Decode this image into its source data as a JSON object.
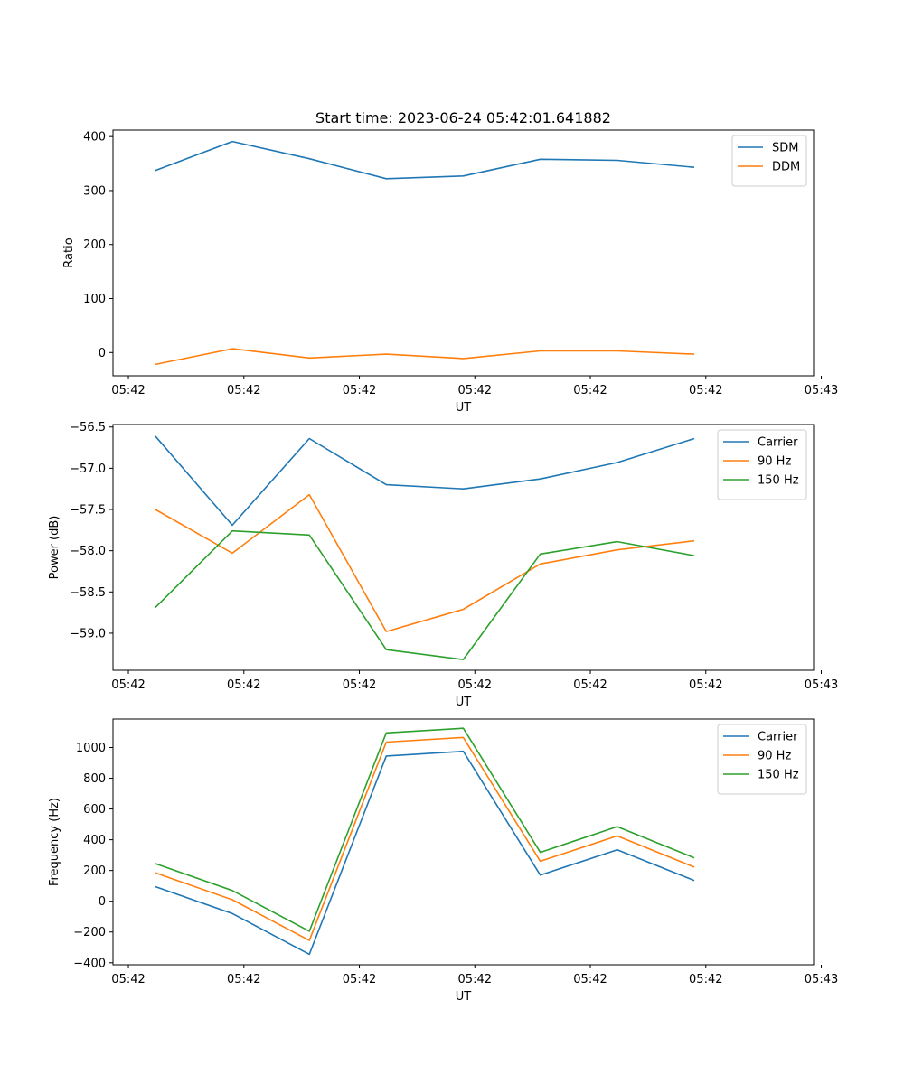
{
  "figure": {
    "title": "Start time: 2023-06-24 05:42:01.641882"
  },
  "chart_data": [
    {
      "type": "line",
      "xlabel": "UT",
      "ylabel": "Ratio",
      "x": [
        1,
        2,
        3,
        4,
        5,
        6,
        7,
        8
      ],
      "xlim": [
        0.45,
        9.55
      ],
      "ylim": [
        -43,
        412
      ],
      "xticks": [
        0.65,
        2.15,
        3.65,
        5.15,
        6.65,
        8.15,
        9.65
      ],
      "xtick_labels": [
        "05:42",
        "05:42",
        "05:42",
        "05:42",
        "05:42",
        "05:42",
        "05:43"
      ],
      "yticks": [
        0,
        100,
        200,
        300,
        400
      ],
      "grid": false,
      "legend_position": "upper-right",
      "series": [
        {
          "name": "SDM",
          "color": "#1f77b4",
          "values": [
            337,
            391,
            359,
            322,
            327,
            358,
            356,
            343
          ]
        },
        {
          "name": "DDM",
          "color": "#ff7f0e",
          "values": [
            -22,
            7,
            -10,
            -3,
            -11,
            3,
            3,
            -3
          ]
        }
      ]
    },
    {
      "type": "line",
      "xlabel": "UT",
      "ylabel": "Power (dB)",
      "x": [
        1,
        2,
        3,
        4,
        5,
        6,
        7,
        8
      ],
      "xlim": [
        0.45,
        9.55
      ],
      "ylim": [
        -59.45,
        -56.47
      ],
      "xticks": [
        0.65,
        2.15,
        3.65,
        5.15,
        6.65,
        8.15,
        9.65
      ],
      "xtick_labels": [
        "05:42",
        "05:42",
        "05:42",
        "05:42",
        "05:42",
        "05:42",
        "05:43"
      ],
      "yticks": [
        -59.0,
        -58.5,
        -58.0,
        -57.5,
        -57.0,
        -56.5
      ],
      "ytick_labels": [
        "−59.0",
        "−58.5",
        "−58.0",
        "−57.5",
        "−57.0",
        "−56.5"
      ],
      "grid": false,
      "legend_position": "upper-right",
      "series": [
        {
          "name": "Carrier",
          "color": "#1f77b4",
          "values": [
            -56.61,
            -57.69,
            -56.64,
            -57.2,
            -57.25,
            -57.13,
            -56.93,
            -56.64
          ]
        },
        {
          "name": "90 Hz",
          "color": "#ff7f0e",
          "values": [
            -57.5,
            -58.03,
            -57.32,
            -58.98,
            -58.71,
            -58.16,
            -57.99,
            -57.88
          ]
        },
        {
          "name": "150 Hz",
          "color": "#2ca02c",
          "values": [
            -58.69,
            -57.76,
            -57.81,
            -59.2,
            -59.32,
            -58.04,
            -57.89,
            -58.06
          ]
        }
      ]
    },
    {
      "type": "line",
      "xlabel": "UT",
      "ylabel": "Frequency (Hz)",
      "x": [
        1,
        2,
        3,
        4,
        5,
        6,
        7,
        8
      ],
      "xlim": [
        0.45,
        9.55
      ],
      "ylim": [
        -413,
        1185
      ],
      "xticks": [
        0.65,
        2.15,
        3.65,
        5.15,
        6.65,
        8.15,
        9.65
      ],
      "xtick_labels": [
        "05:42",
        "05:42",
        "05:42",
        "05:42",
        "05:42",
        "05:42",
        "05:43"
      ],
      "yticks": [
        -400,
        -200,
        0,
        200,
        400,
        600,
        800,
        1000
      ],
      "ytick_labels": [
        "−400",
        "−200",
        "0",
        "200",
        "400",
        "600",
        "800",
        "1000"
      ],
      "grid": false,
      "legend_position": "upper-right",
      "series": [
        {
          "name": "Carrier",
          "color": "#1f77b4",
          "values": [
            95,
            -80,
            -345,
            945,
            975,
            170,
            335,
            135
          ]
        },
        {
          "name": "90 Hz",
          "color": "#ff7f0e",
          "values": [
            185,
            10,
            -255,
            1035,
            1065,
            260,
            425,
            222
          ]
        },
        {
          "name": "150 Hz",
          "color": "#2ca02c",
          "values": [
            245,
            70,
            -195,
            1095,
            1125,
            318,
            485,
            282
          ]
        }
      ]
    }
  ]
}
